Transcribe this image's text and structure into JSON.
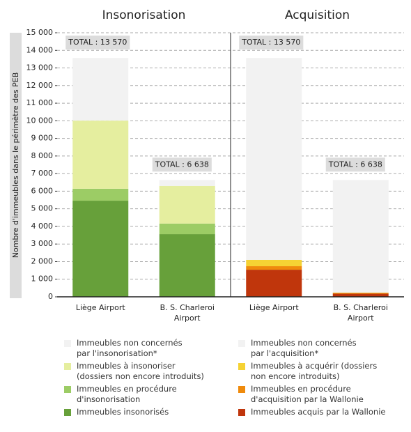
{
  "chart_data": [
    {
      "type": "bar",
      "stacked": true,
      "title": "Insonorisation",
      "y_label": "Nombre d'immeubles dans le périmètre des PEB",
      "ylim": [
        0,
        15000
      ],
      "yticks": [
        0,
        {
          "value": 1000,
          "label": "1 000"
        },
        {
          "value": 2000,
          "label": "2 000"
        },
        {
          "value": 3000,
          "label": "3 000"
        },
        {
          "value": 4000,
          "label": "4 000"
        },
        {
          "value": 5000,
          "label": "5 000"
        },
        {
          "value": 6000,
          "label": "6 000"
        },
        {
          "value": 7000,
          "label": "7 000"
        },
        {
          "value": 8000,
          "label": "8 000"
        },
        {
          "value": 9000,
          "label": "9 000"
        },
        {
          "value": 10000,
          "label": "10 000"
        },
        {
          "value": 11000,
          "label": "11 000"
        },
        {
          "value": 12000,
          "label": "12 000"
        },
        {
          "value": 13000,
          "label": "13 000"
        },
        {
          "value": 14000,
          "label": "14 000"
        },
        {
          "value": 15000,
          "label": "15 000"
        }
      ],
      "grid": true,
      "categories": [
        "Liège Airport",
        "B. S. Charleroi Airport"
      ],
      "totals": [
        13570,
        6638
      ],
      "total_labels": [
        "TOTAL : 13 570",
        "TOTAL : 6 638"
      ],
      "series": [
        {
          "name": "Immeubles insonorisés",
          "color": "#67a03a",
          "values": [
            5460,
            3560
          ]
        },
        {
          "name": "Immeubles en procédure\nd'insonorisation",
          "color": "#9ccc65",
          "values": [
            680,
            600
          ]
        },
        {
          "name": "Immeubles à insonoriser\n(dossiers non encore introduits)",
          "color": "#e5ee9f",
          "values": [
            3870,
            2140
          ]
        },
        {
          "name": "Immeubles non concernés\npar l'insonorisation*",
          "color": "#f2f2f2",
          "values": [
            3560,
            338
          ]
        }
      ]
    },
    {
      "type": "bar",
      "stacked": true,
      "title": "Acquisition",
      "categories": [
        "Liège Airport",
        "B. S. Charleroi Airport"
      ],
      "totals": [
        13570,
        6638
      ],
      "total_labels": [
        "TOTAL : 13 570",
        "TOTAL : 6 638"
      ],
      "series": [
        {
          "name": "Immeubles acquis par la Wallonie",
          "color": "#c0360c",
          "values": [
            1540,
            180
          ]
        },
        {
          "name": "Immeubles en procédure\nd'acquisition par la Wallonie",
          "color": "#ef8a0c",
          "values": [
            200,
            40
          ]
        },
        {
          "name": "Immeubles à acquérir (dossiers\nnon encore introduits)",
          "color": "#f5d234",
          "values": [
            360,
            20
          ]
        },
        {
          "name": "Immeubles non concernés\npar l'acquisition*",
          "color": "#f2f2f2",
          "values": [
            11470,
            6398
          ]
        }
      ]
    }
  ]
}
